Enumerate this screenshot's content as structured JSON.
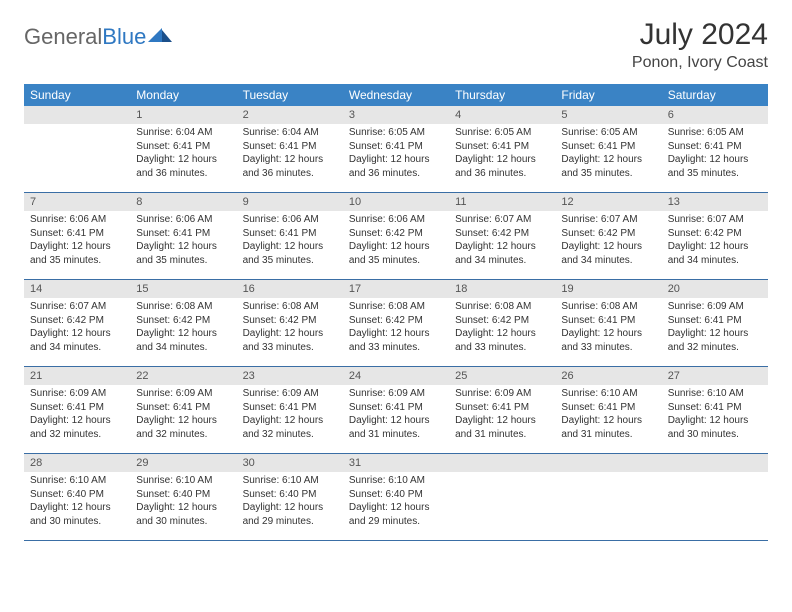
{
  "brand": {
    "part1": "General",
    "part2": "Blue"
  },
  "title": "July 2024",
  "location": "Ponon, Ivory Coast",
  "colors": {
    "header_bg": "#3a83c5",
    "header_fg": "#ffffff",
    "daynum_bg": "#e6e6e6",
    "week_border": "#3a6ea5",
    "brand_accent": "#2f78c2"
  },
  "day_names": [
    "Sunday",
    "Monday",
    "Tuesday",
    "Wednesday",
    "Thursday",
    "Friday",
    "Saturday"
  ],
  "weeks": [
    [
      {
        "n": "",
        "sr": "",
        "ss": "",
        "dl": ""
      },
      {
        "n": "1",
        "sr": "Sunrise: 6:04 AM",
        "ss": "Sunset: 6:41 PM",
        "dl": "Daylight: 12 hours and 36 minutes."
      },
      {
        "n": "2",
        "sr": "Sunrise: 6:04 AM",
        "ss": "Sunset: 6:41 PM",
        "dl": "Daylight: 12 hours and 36 minutes."
      },
      {
        "n": "3",
        "sr": "Sunrise: 6:05 AM",
        "ss": "Sunset: 6:41 PM",
        "dl": "Daylight: 12 hours and 36 minutes."
      },
      {
        "n": "4",
        "sr": "Sunrise: 6:05 AM",
        "ss": "Sunset: 6:41 PM",
        "dl": "Daylight: 12 hours and 36 minutes."
      },
      {
        "n": "5",
        "sr": "Sunrise: 6:05 AM",
        "ss": "Sunset: 6:41 PM",
        "dl": "Daylight: 12 hours and 35 minutes."
      },
      {
        "n": "6",
        "sr": "Sunrise: 6:05 AM",
        "ss": "Sunset: 6:41 PM",
        "dl": "Daylight: 12 hours and 35 minutes."
      }
    ],
    [
      {
        "n": "7",
        "sr": "Sunrise: 6:06 AM",
        "ss": "Sunset: 6:41 PM",
        "dl": "Daylight: 12 hours and 35 minutes."
      },
      {
        "n": "8",
        "sr": "Sunrise: 6:06 AM",
        "ss": "Sunset: 6:41 PM",
        "dl": "Daylight: 12 hours and 35 minutes."
      },
      {
        "n": "9",
        "sr": "Sunrise: 6:06 AM",
        "ss": "Sunset: 6:41 PM",
        "dl": "Daylight: 12 hours and 35 minutes."
      },
      {
        "n": "10",
        "sr": "Sunrise: 6:06 AM",
        "ss": "Sunset: 6:42 PM",
        "dl": "Daylight: 12 hours and 35 minutes."
      },
      {
        "n": "11",
        "sr": "Sunrise: 6:07 AM",
        "ss": "Sunset: 6:42 PM",
        "dl": "Daylight: 12 hours and 34 minutes."
      },
      {
        "n": "12",
        "sr": "Sunrise: 6:07 AM",
        "ss": "Sunset: 6:42 PM",
        "dl": "Daylight: 12 hours and 34 minutes."
      },
      {
        "n": "13",
        "sr": "Sunrise: 6:07 AM",
        "ss": "Sunset: 6:42 PM",
        "dl": "Daylight: 12 hours and 34 minutes."
      }
    ],
    [
      {
        "n": "14",
        "sr": "Sunrise: 6:07 AM",
        "ss": "Sunset: 6:42 PM",
        "dl": "Daylight: 12 hours and 34 minutes."
      },
      {
        "n": "15",
        "sr": "Sunrise: 6:08 AM",
        "ss": "Sunset: 6:42 PM",
        "dl": "Daylight: 12 hours and 34 minutes."
      },
      {
        "n": "16",
        "sr": "Sunrise: 6:08 AM",
        "ss": "Sunset: 6:42 PM",
        "dl": "Daylight: 12 hours and 33 minutes."
      },
      {
        "n": "17",
        "sr": "Sunrise: 6:08 AM",
        "ss": "Sunset: 6:42 PM",
        "dl": "Daylight: 12 hours and 33 minutes."
      },
      {
        "n": "18",
        "sr": "Sunrise: 6:08 AM",
        "ss": "Sunset: 6:42 PM",
        "dl": "Daylight: 12 hours and 33 minutes."
      },
      {
        "n": "19",
        "sr": "Sunrise: 6:08 AM",
        "ss": "Sunset: 6:41 PM",
        "dl": "Daylight: 12 hours and 33 minutes."
      },
      {
        "n": "20",
        "sr": "Sunrise: 6:09 AM",
        "ss": "Sunset: 6:41 PM",
        "dl": "Daylight: 12 hours and 32 minutes."
      }
    ],
    [
      {
        "n": "21",
        "sr": "Sunrise: 6:09 AM",
        "ss": "Sunset: 6:41 PM",
        "dl": "Daylight: 12 hours and 32 minutes."
      },
      {
        "n": "22",
        "sr": "Sunrise: 6:09 AM",
        "ss": "Sunset: 6:41 PM",
        "dl": "Daylight: 12 hours and 32 minutes."
      },
      {
        "n": "23",
        "sr": "Sunrise: 6:09 AM",
        "ss": "Sunset: 6:41 PM",
        "dl": "Daylight: 12 hours and 32 minutes."
      },
      {
        "n": "24",
        "sr": "Sunrise: 6:09 AM",
        "ss": "Sunset: 6:41 PM",
        "dl": "Daylight: 12 hours and 31 minutes."
      },
      {
        "n": "25",
        "sr": "Sunrise: 6:09 AM",
        "ss": "Sunset: 6:41 PM",
        "dl": "Daylight: 12 hours and 31 minutes."
      },
      {
        "n": "26",
        "sr": "Sunrise: 6:10 AM",
        "ss": "Sunset: 6:41 PM",
        "dl": "Daylight: 12 hours and 31 minutes."
      },
      {
        "n": "27",
        "sr": "Sunrise: 6:10 AM",
        "ss": "Sunset: 6:41 PM",
        "dl": "Daylight: 12 hours and 30 minutes."
      }
    ],
    [
      {
        "n": "28",
        "sr": "Sunrise: 6:10 AM",
        "ss": "Sunset: 6:40 PM",
        "dl": "Daylight: 12 hours and 30 minutes."
      },
      {
        "n": "29",
        "sr": "Sunrise: 6:10 AM",
        "ss": "Sunset: 6:40 PM",
        "dl": "Daylight: 12 hours and 30 minutes."
      },
      {
        "n": "30",
        "sr": "Sunrise: 6:10 AM",
        "ss": "Sunset: 6:40 PM",
        "dl": "Daylight: 12 hours and 29 minutes."
      },
      {
        "n": "31",
        "sr": "Sunrise: 6:10 AM",
        "ss": "Sunset: 6:40 PM",
        "dl": "Daylight: 12 hours and 29 minutes."
      },
      {
        "n": "",
        "sr": "",
        "ss": "",
        "dl": ""
      },
      {
        "n": "",
        "sr": "",
        "ss": "",
        "dl": ""
      },
      {
        "n": "",
        "sr": "",
        "ss": "",
        "dl": ""
      }
    ]
  ]
}
